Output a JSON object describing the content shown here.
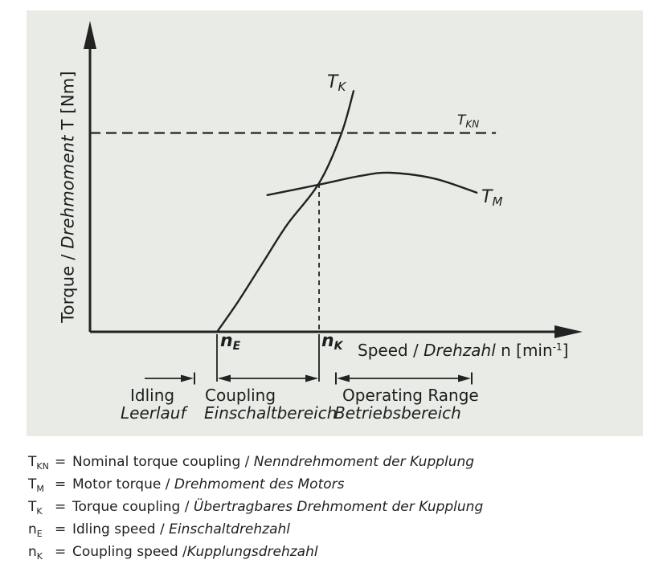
{
  "figure": {
    "axis_labels": {
      "y_en": "Torque / ",
      "y_de": "Drehmoment",
      "y_unit": " T [Nm]",
      "x_en": "Speed / ",
      "x_de": "Drehzahl",
      "x_unit_pre": " n [min",
      "x_sup": "-1",
      "x_unit_post": "]"
    },
    "curve_labels": {
      "tk": {
        "main": "T",
        "sub": "K"
      },
      "tkn": {
        "main": "T",
        "sub": "KN"
      },
      "tm": {
        "main": "T",
        "sub": "M"
      },
      "ne": {
        "main": "n",
        "sub": "E"
      },
      "nk": {
        "main": "n",
        "sub": "K"
      }
    }
  },
  "chart_data": {
    "type": "line",
    "title": "",
    "xlabel": "Speed / Drehzahl n [min⁻¹]",
    "ylabel": "Torque / Drehmoment T [Nm]",
    "axes_have_numeric_ticks": false,
    "coords": "fractions of visible axis length (x: 0 = origin, 1 = arrow tip; y: 0 = baseline, 1 = top)",
    "series": [
      {
        "name": "T_K",
        "description": "Torque coupling / Übertragbares Drehmoment der Kupplung",
        "x": [
          0.258,
          0.3,
          0.35,
          0.4,
          0.465,
          0.51,
          0.535
        ],
        "y": [
          0.0,
          0.1,
          0.23,
          0.36,
          0.5,
          0.665,
          0.81
        ]
      },
      {
        "name": "T_M",
        "description": "Motor torque / Drehmoment des Motors",
        "x": [
          0.36,
          0.465,
          0.55,
          0.61,
          0.7,
          0.785
        ],
        "y": [
          0.46,
          0.495,
          0.525,
          0.535,
          0.515,
          0.468
        ]
      }
    ],
    "reference_line": {
      "name": "T_KN",
      "description": "Nominal torque coupling / Nenndrehmoment der Kupplung",
      "level": 0.669,
      "x_start": 0.0,
      "x_end": 0.824,
      "style": "dashed"
    },
    "markers": [
      {
        "name": "n_E",
        "description": "Idling speed / Einschaltdrehzahl",
        "x": 0.258
      },
      {
        "name": "n_K",
        "description": "Coupling speed / Kupplungsdrehzahl",
        "x": 0.465,
        "drop_from": 0.5
      }
    ],
    "ranges": [
      {
        "en": "Idling",
        "de": "Leerlauf",
        "x_start": 0.111,
        "x_end": 0.212
      },
      {
        "en": "Coupling",
        "de": "Einschaltbereich",
        "x_start": 0.258,
        "x_end": 0.465
      },
      {
        "en": "Operating Range",
        "de": "Betriebsbereich",
        "x_start": 0.499,
        "x_end": 0.775
      }
    ]
  },
  "legend": {
    "eq": "=",
    "rows": [
      {
        "sym": "T",
        "sub": "KN",
        "en": "Nominal torque coupling",
        "sep": " / ",
        "de": "Nenndrehmoment der Kupplung"
      },
      {
        "sym": "T",
        "sub": "M",
        "en": "Motor torque",
        "sep": " / ",
        "de": "Drehmoment des Motors"
      },
      {
        "sym": "T",
        "sub": "K",
        "en": "Torque coupling",
        "sep": " / ",
        "de": "Übertragbares Drehmoment der Kupplung"
      },
      {
        "sym": "n",
        "sub": "E",
        "en": "Idling speed",
        "sep": " / ",
        "de": "Einschaltdrehzahl"
      },
      {
        "sym": "n",
        "sub": "K",
        "en": "Coupling speed",
        "sep": " /",
        "de": "Kupplungsdrehzahl"
      }
    ]
  },
  "colors": {
    "panel_bg": "#e9ece6",
    "ink": "#1f1f1f"
  }
}
